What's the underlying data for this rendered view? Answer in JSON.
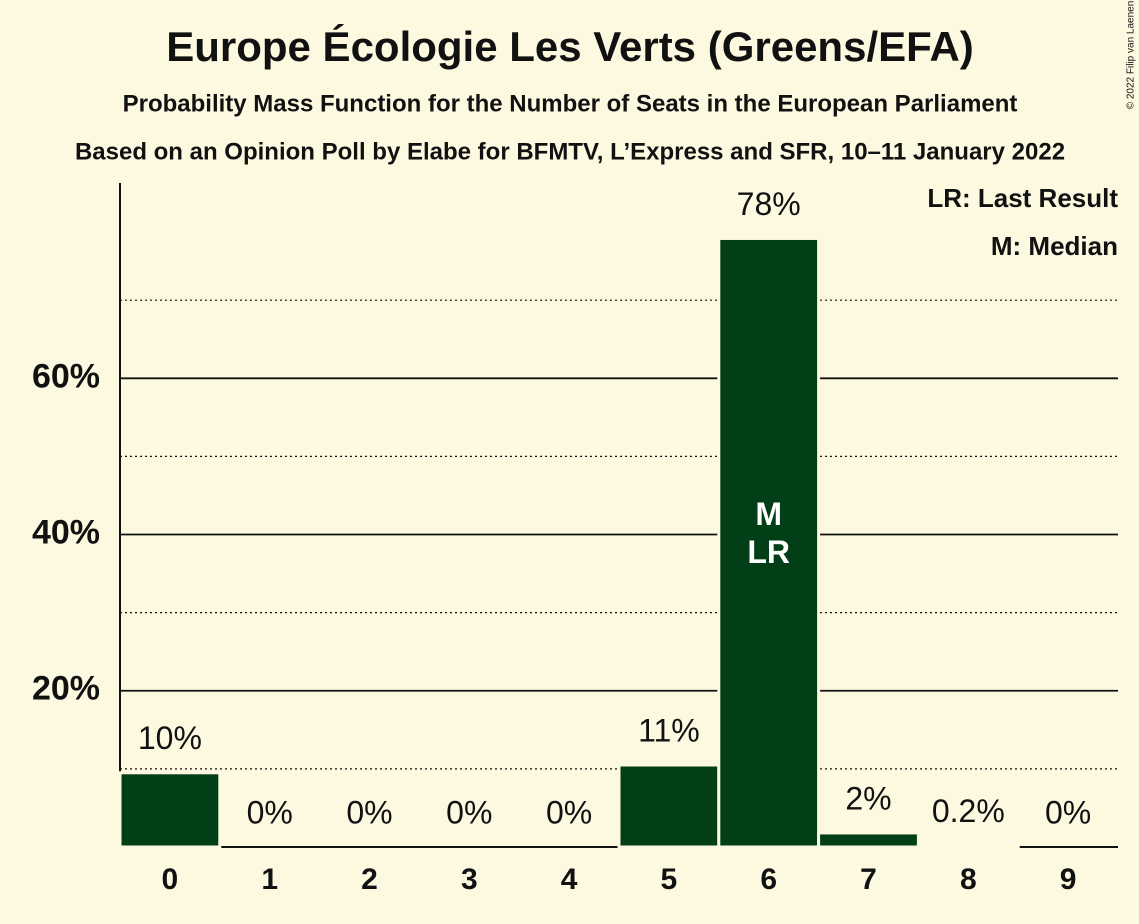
{
  "chart_data": {
    "type": "bar",
    "title": "Europe Écologie Les Verts (Greens/EFA)",
    "subtitles": [
      "Probability Mass Function for the Number of Seats in the European Parliament",
      "Based on an Opinion Poll by Elabe for BFMTV, L’Express and SFR, 10–11 January 2022"
    ],
    "categories": [
      "0",
      "1",
      "2",
      "3",
      "4",
      "5",
      "6",
      "7",
      "8",
      "9"
    ],
    "values": [
      9.5,
      0,
      0,
      0,
      0,
      10.5,
      77.9,
      1.8,
      0.2,
      0
    ],
    "value_labels": [
      "10%",
      "0%",
      "0%",
      "0%",
      "0%",
      "11%",
      "78%",
      "2%",
      "0.2%",
      "0%"
    ],
    "color": "#023f16",
    "ylim": [
      0,
      85
    ],
    "yticks": [
      {
        "value": 20,
        "label": "20%"
      },
      {
        "value": 40,
        "label": "40%"
      },
      {
        "value": 60,
        "label": "60%"
      }
    ],
    "minor_yticks": [
      10,
      30,
      50,
      70
    ],
    "grid": true,
    "annotations": [
      {
        "text": "M",
        "category": "6"
      },
      {
        "text": "LR",
        "category": "6"
      }
    ],
    "legend": [
      "LR: Last Result",
      "M: Median"
    ],
    "legend_position": "top-right",
    "copyright": "© 2022 Filip van Laenen"
  }
}
